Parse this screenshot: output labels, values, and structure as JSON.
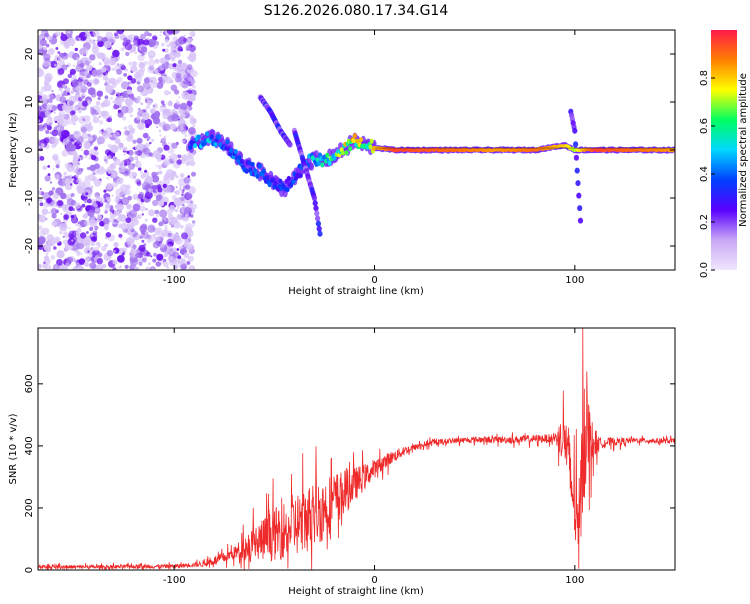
{
  "title": "S126.2026.080.17.34.G14",
  "colors": {
    "snr_line": "#ee2a2a",
    "dense_trace": "#ff3a3a",
    "scatter": "#8a2be2",
    "colorbar_stops": [
      "#f0e6ff",
      "#c8a8f5",
      "#5a00ff",
      "#0040ff",
      "#00d8ff",
      "#00ff60",
      "#ffff00",
      "#ff8000",
      "#ff1a4a"
    ]
  },
  "chart_data": [
    {
      "type": "heatmap",
      "xlabel": "Height of straight line (km)",
      "ylabel": "Frequency (Hz)",
      "xlim": [
        -168,
        150
      ],
      "ylim": [
        -25,
        25
      ],
      "x_ticks": [
        -100,
        0,
        100
      ],
      "x_tick_labels": [
        "-100",
        "0",
        "100"
      ],
      "y_ticks": [
        -20,
        -10,
        0,
        10,
        20
      ],
      "y_tick_labels": [
        "-20",
        "-10",
        "0",
        "10",
        "20"
      ],
      "colorbar": {
        "label": "Normalized spectral amplitude",
        "range": [
          0,
          1
        ],
        "ticks": [
          0.0,
          0.2,
          0.4,
          0.6,
          0.8
        ],
        "tick_labels": [
          "0.0",
          "0.2",
          "0.4",
          "0.6",
          "0.8"
        ]
      },
      "ridge": {
        "x": [
          -92,
          -85,
          -80,
          -75,
          -70,
          -65,
          -60,
          -55,
          -50,
          -45,
          -40,
          -35,
          -30,
          -25,
          -20,
          -15,
          -10,
          -5,
          0,
          10,
          40,
          60,
          80,
          95,
          100,
          105,
          110,
          130,
          150
        ],
        "y": [
          1,
          2,
          2.5,
          1.5,
          -1,
          -3,
          -4,
          -5,
          -7,
          -8,
          -6,
          -3,
          -2,
          -2.5,
          -1,
          0,
          2,
          1,
          0.5,
          0,
          0,
          0,
          0,
          1,
          0,
          0,
          0,
          0,
          0
        ],
        "amplitude": [
          0.4,
          0.5,
          0.4,
          0.35,
          0.4,
          0.35,
          0.4,
          0.35,
          0.4,
          0.3,
          0.35,
          0.4,
          0.5,
          0.55,
          0.6,
          0.7,
          0.75,
          0.7,
          0.8,
          0.95,
          0.9,
          0.85,
          0.9,
          0.8,
          0.7,
          0.85,
          0.95,
          0.9,
          0.85
        ]
      },
      "branches": [
        {
          "x": [
            -57,
            -52,
            -47,
            -42
          ],
          "y": [
            11,
            8,
            4,
            1
          ]
        },
        {
          "x": [
            -40,
            -35,
            -30,
            -27
          ],
          "y": [
            4,
            -3,
            -10,
            -18
          ]
        },
        {
          "x": [
            98,
            100,
            101,
            103
          ],
          "y": [
            8,
            4,
            -3,
            -16
          ]
        }
      ]
    },
    {
      "type": "line",
      "xlabel": "Height of straight line (km)",
      "ylabel": "SNR (10 * v/v)",
      "xlim": [
        -168,
        150
      ],
      "ylim": [
        0,
        780
      ],
      "x_ticks": [
        -100,
        0,
        100
      ],
      "x_tick_labels": [
        "-100",
        "0",
        "100"
      ],
      "y_ticks": [
        0,
        200,
        400,
        600
      ],
      "y_tick_labels": [
        "0",
        "200",
        "400",
        "600"
      ],
      "profile": {
        "x": [
          -168,
          -140,
          -100,
          -85,
          -75,
          -65,
          -55,
          -45,
          -35,
          -25,
          -15,
          -5,
          5,
          15,
          25,
          35,
          50,
          70,
          90,
          95,
          100,
          102,
          105,
          108,
          112,
          130,
          150
        ],
        "y": [
          10,
          10,
          12,
          20,
          40,
          70,
          100,
          130,
          160,
          200,
          250,
          300,
          350,
          385,
          405,
          415,
          420,
          420,
          425,
          430,
          200,
          100,
          500,
          410,
          410,
          418,
          415
        ]
      },
      "noise_amplitude": {
        "x": [
          -168,
          -90,
          -70,
          -60,
          -50,
          -40,
          -30,
          -20,
          -10,
          0,
          20,
          40,
          90,
          97,
          100,
          104,
          108,
          112,
          130,
          150
        ],
        "a": [
          8,
          10,
          30,
          90,
          120,
          150,
          160,
          130,
          80,
          40,
          15,
          12,
          20,
          180,
          160,
          300,
          120,
          25,
          12,
          12
        ]
      }
    }
  ]
}
